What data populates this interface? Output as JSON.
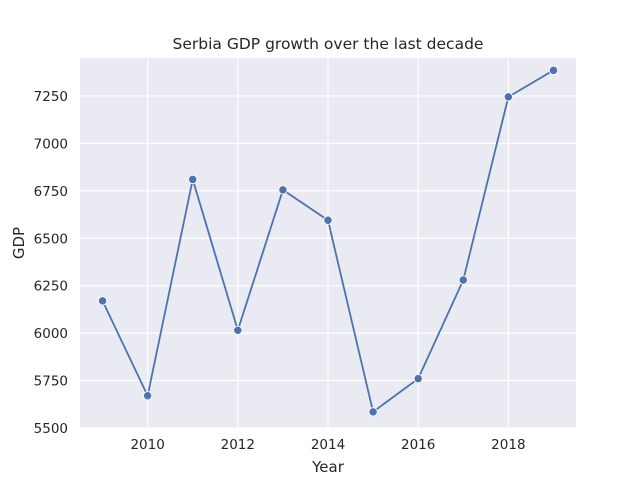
{
  "chart_data": {
    "type": "line",
    "title": "Serbia GDP growth over the last decade",
    "xlabel": "Year",
    "ylabel": "GDP",
    "x": [
      2009,
      2010,
      2011,
      2012,
      2013,
      2014,
      2015,
      2016,
      2017,
      2018,
      2019
    ],
    "series": [
      {
        "values": [
          6170,
          5670,
          6810,
          6015,
          6755,
          6595,
          5585,
          5760,
          6280,
          7245,
          7385
        ]
      }
    ],
    "xlim": [
      2008.5,
      2019.5
    ],
    "ylim": [
      5500,
      7450
    ],
    "xticks": [
      2010,
      2012,
      2014,
      2016,
      2018
    ],
    "yticks": [
      5500,
      5750,
      6000,
      6250,
      6500,
      6750,
      7000,
      7250
    ],
    "grid": true,
    "colors": {
      "plot_background": "#eaeaf2",
      "grid": "#ffffff",
      "line": "#4c72b0",
      "marker_edge": "#ffffff"
    }
  }
}
